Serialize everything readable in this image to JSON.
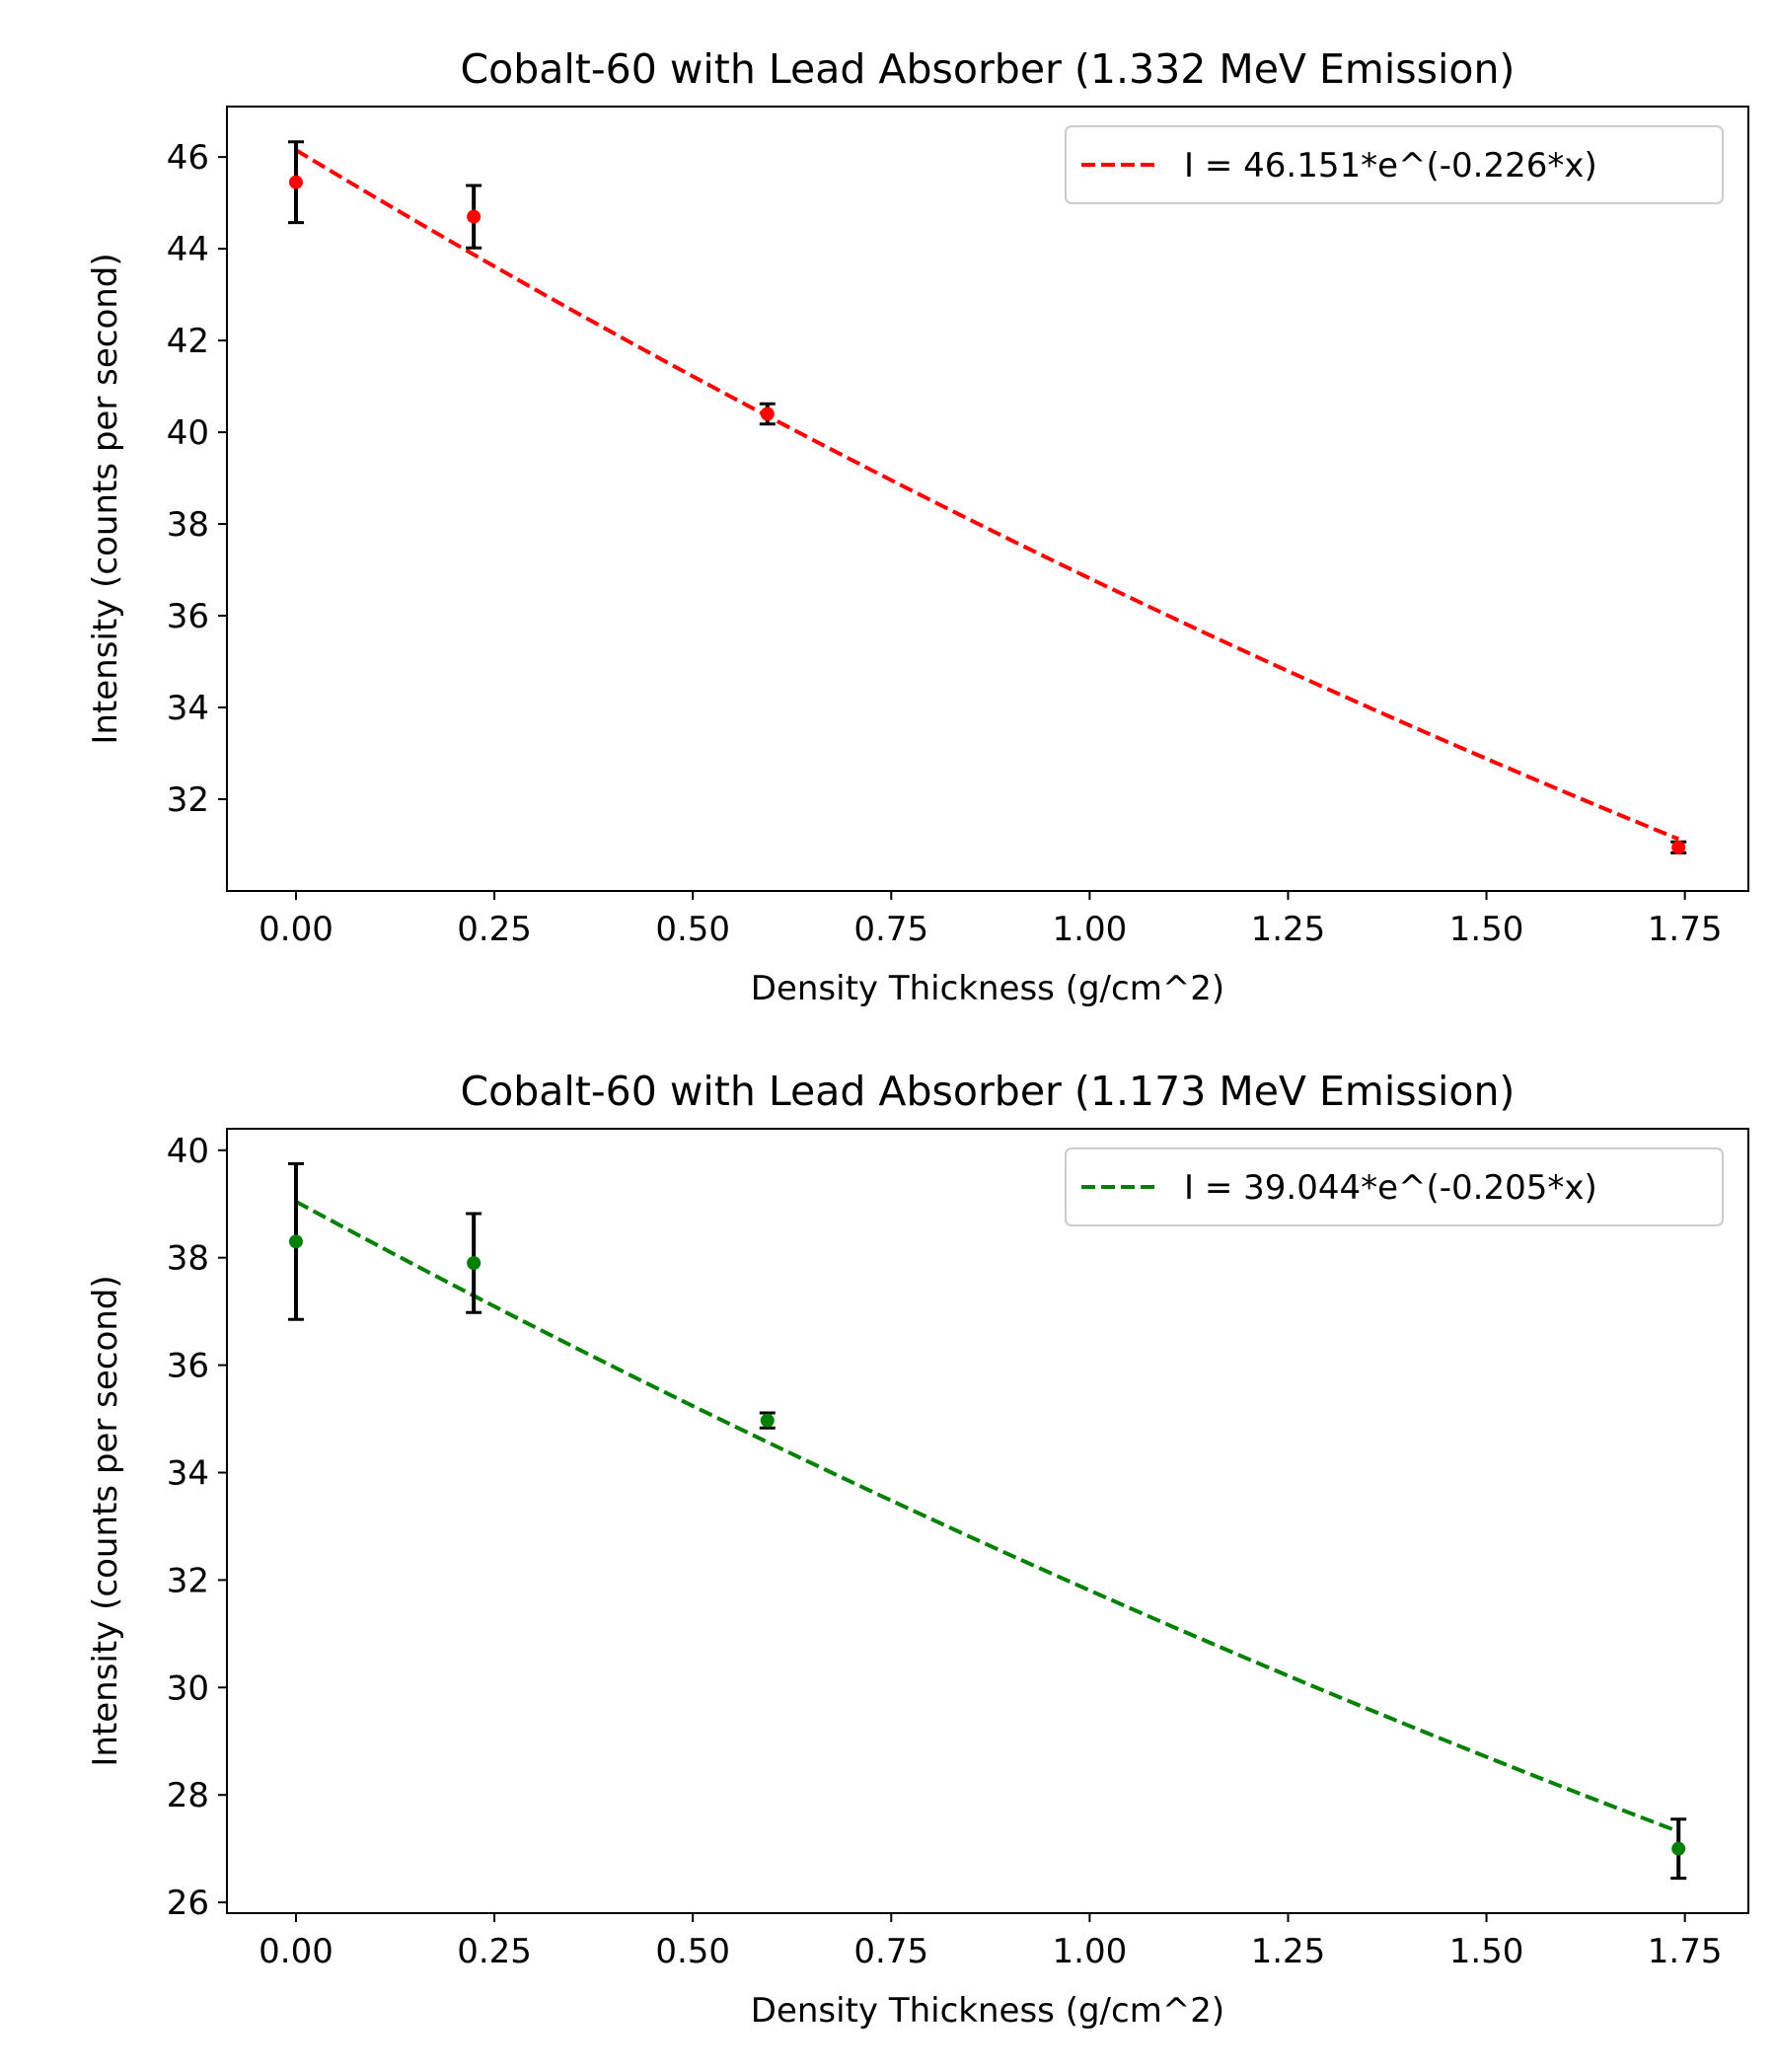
{
  "chart_data": [
    {
      "type": "scatter",
      "title": "Cobalt-60 with Lead Absorber (1.332 MeV Emission)",
      "xlabel": "Density Thickness (g/cm^2)",
      "ylabel": "Intensity (counts per second)",
      "xlim": [
        -0.087,
        1.83
      ],
      "ylim": [
        30.0,
        47.1
      ],
      "xticks": [
        "0.00",
        "0.25",
        "0.50",
        "0.75",
        "1.00",
        "1.25",
        "1.50",
        "1.75"
      ],
      "yticks": [
        "32",
        "34",
        "36",
        "38",
        "40",
        "42",
        "44",
        "46"
      ],
      "grid": false,
      "legend_position": "top-right",
      "point_color": "#ff0000",
      "points": [
        {
          "x": 0.0,
          "y": 45.45,
          "err": 0.88
        },
        {
          "x": 0.224,
          "y": 44.7,
          "err": 0.68
        },
        {
          "x": 0.594,
          "y": 40.4,
          "err": 0.22
        },
        {
          "x": 1.742,
          "y": 30.95,
          "err": 0.12
        }
      ],
      "fit": {
        "label": "I = 46.151*e^(-0.226*x)",
        "a": 46.151,
        "b": 0.226,
        "color": "#ff0000",
        "style": "dashed"
      }
    },
    {
      "type": "scatter",
      "title": "Cobalt-60 with Lead Absorber (1.173 MeV Emission)",
      "xlabel": "Density Thickness (g/cm^2)",
      "ylabel": "Intensity (counts per second)",
      "xlim": [
        -0.087,
        1.83
      ],
      "ylim": [
        25.8,
        40.4
      ],
      "xticks": [
        "0.00",
        "0.25",
        "0.50",
        "0.75",
        "1.00",
        "1.25",
        "1.50",
        "1.75"
      ],
      "yticks": [
        "26",
        "28",
        "30",
        "32",
        "34",
        "36",
        "38",
        "40"
      ],
      "grid": false,
      "legend_position": "top-right",
      "point_color": "#008000",
      "points": [
        {
          "x": 0.0,
          "y": 38.3,
          "err": 1.45
        },
        {
          "x": 0.224,
          "y": 37.9,
          "err": 0.92
        },
        {
          "x": 0.594,
          "y": 34.97,
          "err": 0.14
        },
        {
          "x": 1.742,
          "y": 27.0,
          "err": 0.55
        }
      ],
      "fit": {
        "label": "I = 39.044*e^(-0.205*x)",
        "a": 39.044,
        "b": 0.205,
        "color": "#008000",
        "style": "dashed"
      }
    }
  ]
}
